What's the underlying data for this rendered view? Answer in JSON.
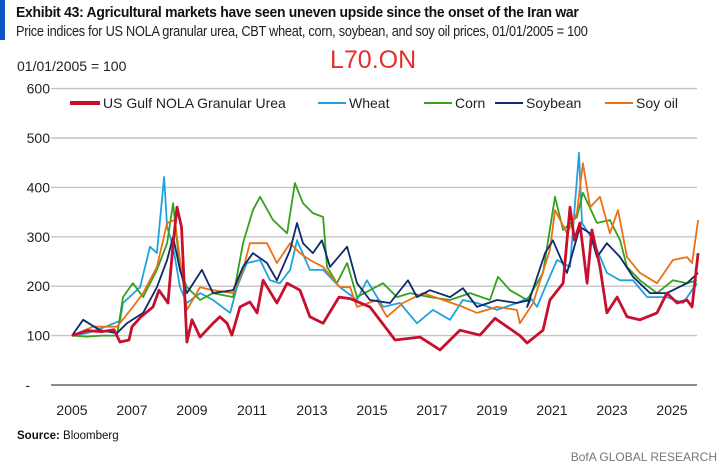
{
  "header": {
    "title": "Exhibit 43: Agricultural markets have seen uneven upside since the onset of the Iran war",
    "subtitle": "Price indices for US NOLA granular urea, CBT wheat, corn, soybean, and soy oil prices, 01/01/2005 = 100",
    "watermark": "L70.ON"
  },
  "footer": {
    "source_label": "Source:",
    "source_value": "Bloomberg",
    "brand": "BofA GLOBAL RESEARCH"
  },
  "chart_data": {
    "type": "line",
    "title": "Exhibit 43: Agricultural markets have seen uneven upside since the onset of the Iran war",
    "ylabel": "01/01/2005 = 100",
    "xlabel": "",
    "xlim": [
      2005,
      2026
    ],
    "ylim": [
      0,
      600
    ],
    "x_ticks": [
      "2005",
      "2007",
      "2009",
      "2011",
      "2013",
      "2015",
      "2017",
      "2019",
      "2021",
      "2023",
      "2025"
    ],
    "y_ticks": [
      "600",
      "500",
      "400",
      "300",
      "200",
      "100",
      "-"
    ],
    "grid": "horizontal",
    "legend": "top",
    "series": [
      {
        "name": "US Gulf NOLA Granular Urea",
        "color": "#c8102e",
        "points": [
          [
            2005,
            100
          ],
          [
            2005.5,
            110
          ],
          [
            2006,
            108
          ],
          [
            2006.4,
            112
          ],
          [
            2006.6,
            87
          ],
          [
            2006.9,
            91
          ],
          [
            2007.0,
            118
          ],
          [
            2007.3,
            138
          ],
          [
            2007.7,
            158
          ],
          [
            2007.9,
            192
          ],
          [
            2008.2,
            166
          ],
          [
            2008.35,
            273
          ],
          [
            2008.5,
            360
          ],
          [
            2008.65,
            320
          ],
          [
            2008.83,
            87
          ],
          [
            2009.0,
            132
          ],
          [
            2009.27,
            97
          ],
          [
            2009.7,
            125
          ],
          [
            2009.93,
            138
          ],
          [
            2010.17,
            125
          ],
          [
            2010.33,
            101
          ],
          [
            2010.6,
            158
          ],
          [
            2010.93,
            168
          ],
          [
            2011.17,
            146
          ],
          [
            2011.37,
            212
          ],
          [
            2011.83,
            166
          ],
          [
            2012.17,
            206
          ],
          [
            2012.6,
            192
          ],
          [
            2012.93,
            138
          ],
          [
            2013.37,
            125
          ],
          [
            2013.9,
            178
          ],
          [
            2014.27,
            175
          ],
          [
            2014.93,
            158
          ],
          [
            2015.77,
            91
          ],
          [
            2016.6,
            97
          ],
          [
            2017.27,
            71
          ],
          [
            2017.93,
            111
          ],
          [
            2018.6,
            101
          ],
          [
            2019.1,
            135
          ],
          [
            2019.93,
            100
          ],
          [
            2020.17,
            85
          ],
          [
            2020.7,
            111
          ],
          [
            2020.93,
            172
          ],
          [
            2021.37,
            206
          ],
          [
            2021.6,
            360
          ],
          [
            2021.75,
            293
          ],
          [
            2021.93,
            328
          ],
          [
            2022.17,
            206
          ],
          [
            2022.33,
            314
          ],
          [
            2022.6,
            239
          ],
          [
            2022.83,
            146
          ],
          [
            2023.17,
            178
          ],
          [
            2023.5,
            138
          ],
          [
            2023.93,
            132
          ],
          [
            2024.5,
            146
          ],
          [
            2024.83,
            186
          ],
          [
            2025.17,
            166
          ],
          [
            2025.5,
            172
          ],
          [
            2025.67,
            158
          ],
          [
            2025.87,
            267
          ]
        ]
      },
      {
        "name": "Wheat",
        "color": "#1fa3e0",
        "points": [
          [
            2005,
            100
          ],
          [
            2005.5,
            105
          ],
          [
            2006,
            115
          ],
          [
            2006.6,
            130
          ],
          [
            2006.7,
            166
          ],
          [
            2007.27,
            198
          ],
          [
            2007.6,
            280
          ],
          [
            2007.83,
            267
          ],
          [
            2008.07,
            421
          ],
          [
            2008.17,
            320
          ],
          [
            2008.37,
            280
          ],
          [
            2008.6,
            198
          ],
          [
            2008.83,
            166
          ],
          [
            2009.27,
            186
          ],
          [
            2009.7,
            172
          ],
          [
            2010.27,
            146
          ],
          [
            2010.5,
            198
          ],
          [
            2010.83,
            247
          ],
          [
            2011.27,
            253
          ],
          [
            2011.6,
            212
          ],
          [
            2011.93,
            206
          ],
          [
            2012.27,
            233
          ],
          [
            2012.5,
            293
          ],
          [
            2012.93,
            233
          ],
          [
            2013.37,
            233
          ],
          [
            2013.93,
            198
          ],
          [
            2014.5,
            172
          ],
          [
            2014.83,
            212
          ],
          [
            2015.37,
            158
          ],
          [
            2015.93,
            166
          ],
          [
            2016.5,
            125
          ],
          [
            2017.03,
            152
          ],
          [
            2017.6,
            132
          ],
          [
            2018.03,
            172
          ],
          [
            2018.5,
            166
          ],
          [
            2019.17,
            152
          ],
          [
            2019.83,
            166
          ],
          [
            2020.27,
            178
          ],
          [
            2020.5,
            158
          ],
          [
            2020.83,
            206
          ],
          [
            2021.17,
            253
          ],
          [
            2021.6,
            239
          ],
          [
            2021.9,
            470
          ],
          [
            2022.0,
            328
          ],
          [
            2022.37,
            293
          ],
          [
            2022.83,
            227
          ],
          [
            2023.27,
            212
          ],
          [
            2023.7,
            212
          ],
          [
            2024.17,
            178
          ],
          [
            2024.83,
            178
          ],
          [
            2025.37,
            166
          ],
          [
            2025.83,
            206
          ]
        ]
      },
      {
        "name": "Corn",
        "color": "#35a11c",
        "points": [
          [
            2005,
            100
          ],
          [
            2005.5,
            98
          ],
          [
            2006,
            100
          ],
          [
            2006.5,
            100
          ],
          [
            2006.7,
            178
          ],
          [
            2007.03,
            206
          ],
          [
            2007.37,
            178
          ],
          [
            2007.83,
            233
          ],
          [
            2008.17,
            287
          ],
          [
            2008.37,
            368
          ],
          [
            2008.6,
            233
          ],
          [
            2008.83,
            198
          ],
          [
            2009.27,
            172
          ],
          [
            2009.7,
            186
          ],
          [
            2010.37,
            178
          ],
          [
            2010.7,
            287
          ],
          [
            2011.03,
            354
          ],
          [
            2011.27,
            381
          ],
          [
            2011.7,
            334
          ],
          [
            2012.17,
            307
          ],
          [
            2012.43,
            409
          ],
          [
            2012.7,
            368
          ],
          [
            2013.03,
            348
          ],
          [
            2013.37,
            340
          ],
          [
            2013.5,
            239
          ],
          [
            2013.83,
            206
          ],
          [
            2014.17,
            247
          ],
          [
            2014.5,
            178
          ],
          [
            2014.93,
            192
          ],
          [
            2015.37,
            206
          ],
          [
            2015.83,
            178
          ],
          [
            2016.27,
            186
          ],
          [
            2016.93,
            178
          ],
          [
            2017.6,
            172
          ],
          [
            2018.27,
            186
          ],
          [
            2018.93,
            172
          ],
          [
            2019.2,
            219
          ],
          [
            2019.6,
            192
          ],
          [
            2020.17,
            172
          ],
          [
            2020.7,
            227
          ],
          [
            2021.1,
            381
          ],
          [
            2021.37,
            314
          ],
          [
            2021.83,
            340
          ],
          [
            2022.03,
            389
          ],
          [
            2022.5,
            328
          ],
          [
            2022.93,
            334
          ],
          [
            2023.27,
            293
          ],
          [
            2023.5,
            239
          ],
          [
            2023.93,
            212
          ],
          [
            2024.5,
            186
          ],
          [
            2025.03,
            212
          ],
          [
            2025.5,
            206
          ],
          [
            2025.83,
            212
          ]
        ]
      },
      {
        "name": "Soybean",
        "color": "#0c2a6e",
        "points": [
          [
            2005,
            100
          ],
          [
            2005.37,
            132
          ],
          [
            2005.93,
            111
          ],
          [
            2006.5,
            105
          ],
          [
            2006.83,
            125
          ],
          [
            2007.37,
            146
          ],
          [
            2007.83,
            198
          ],
          [
            2008.17,
            253
          ],
          [
            2008.37,
            300
          ],
          [
            2008.6,
            233
          ],
          [
            2008.83,
            186
          ],
          [
            2009.33,
            233
          ],
          [
            2009.7,
            186
          ],
          [
            2010.37,
            192
          ],
          [
            2010.7,
            239
          ],
          [
            2011.03,
            267
          ],
          [
            2011.5,
            247
          ],
          [
            2011.83,
            212
          ],
          [
            2012.27,
            273
          ],
          [
            2012.5,
            328
          ],
          [
            2012.7,
            287
          ],
          [
            2013.03,
            267
          ],
          [
            2013.33,
            293
          ],
          [
            2013.6,
            239
          ],
          [
            2014.17,
            280
          ],
          [
            2014.5,
            206
          ],
          [
            2014.93,
            172
          ],
          [
            2015.6,
            166
          ],
          [
            2016.2,
            212
          ],
          [
            2016.5,
            178
          ],
          [
            2016.93,
            192
          ],
          [
            2017.6,
            178
          ],
          [
            2018.03,
            196
          ],
          [
            2018.5,
            158
          ],
          [
            2019.17,
            172
          ],
          [
            2019.83,
            166
          ],
          [
            2020.27,
            172
          ],
          [
            2020.17,
            158
          ],
          [
            2020.77,
            267
          ],
          [
            2021.03,
            293
          ],
          [
            2021.5,
            227
          ],
          [
            2021.93,
            320
          ],
          [
            2022.27,
            307
          ],
          [
            2022.5,
            259
          ],
          [
            2022.83,
            287
          ],
          [
            2023.27,
            259
          ],
          [
            2023.7,
            219
          ],
          [
            2024.27,
            186
          ],
          [
            2024.83,
            186
          ],
          [
            2025.5,
            206
          ],
          [
            2025.87,
            227
          ]
        ]
      },
      {
        "name": "Soy oil",
        "color": "#ec7014",
        "points": [
          [
            2005,
            100
          ],
          [
            2005.7,
            118
          ],
          [
            2006.5,
            118
          ],
          [
            2007.03,
            158
          ],
          [
            2007.37,
            186
          ],
          [
            2007.83,
            239
          ],
          [
            2008.17,
            328
          ],
          [
            2008.43,
            334
          ],
          [
            2008.6,
            253
          ],
          [
            2008.83,
            152
          ],
          [
            2009.27,
            198
          ],
          [
            2009.7,
            192
          ],
          [
            2010.37,
            186
          ],
          [
            2010.7,
            233
          ],
          [
            2010.93,
            287
          ],
          [
            2011.5,
            287
          ],
          [
            2011.83,
            247
          ],
          [
            2012.27,
            287
          ],
          [
            2012.6,
            267
          ],
          [
            2012.93,
            253
          ],
          [
            2013.37,
            239
          ],
          [
            2013.93,
            198
          ],
          [
            2014.27,
            198
          ],
          [
            2014.5,
            158
          ],
          [
            2015.17,
            172
          ],
          [
            2015.5,
            138
          ],
          [
            2016.03,
            166
          ],
          [
            2016.7,
            186
          ],
          [
            2017.37,
            172
          ],
          [
            2018.03,
            158
          ],
          [
            2018.5,
            146
          ],
          [
            2019.17,
            158
          ],
          [
            2019.83,
            152
          ],
          [
            2019.93,
            125
          ],
          [
            2020.37,
            166
          ],
          [
            2020.93,
            273
          ],
          [
            2021.1,
            354
          ],
          [
            2021.5,
            307
          ],
          [
            2021.83,
            348
          ],
          [
            2022.03,
            449
          ],
          [
            2022.27,
            360
          ],
          [
            2022.6,
            381
          ],
          [
            2022.93,
            307
          ],
          [
            2023.2,
            354
          ],
          [
            2023.5,
            259
          ],
          [
            2023.93,
            227
          ],
          [
            2024.5,
            206
          ],
          [
            2025.03,
            253
          ],
          [
            2025.5,
            259
          ],
          [
            2025.67,
            247
          ],
          [
            2025.87,
            334
          ]
        ]
      }
    ]
  }
}
